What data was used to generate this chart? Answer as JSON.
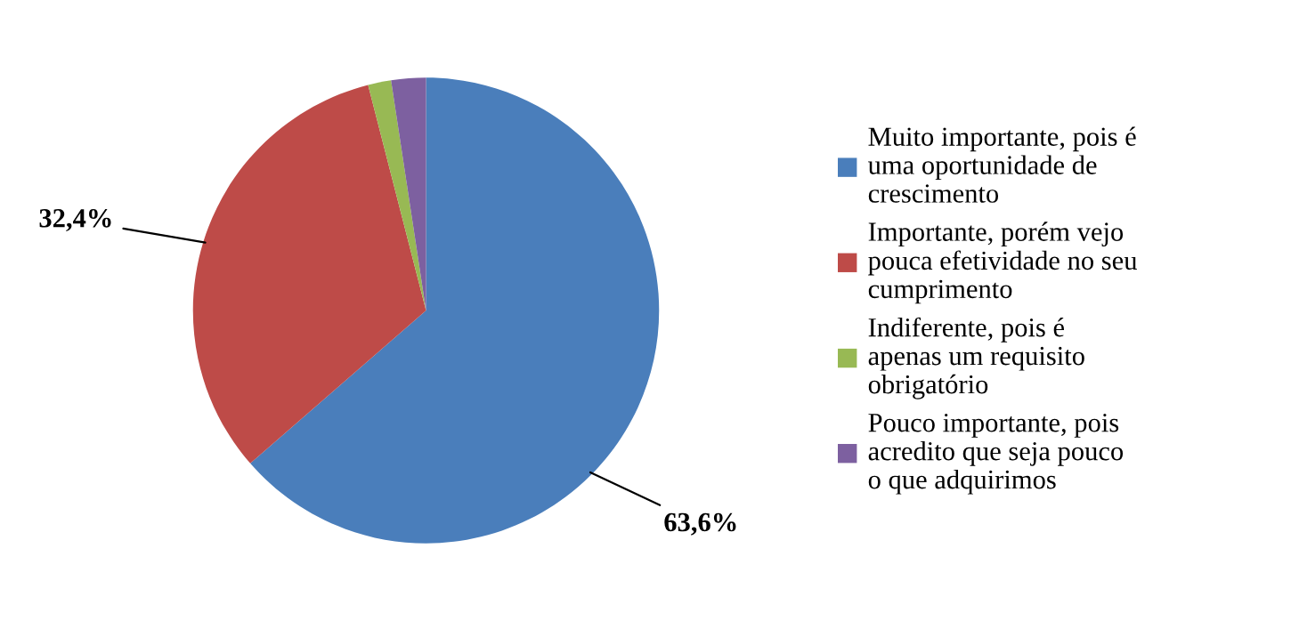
{
  "chart_data": {
    "type": "pie",
    "categories": [
      "Muito importante, pois é uma oportunidade de crescimento",
      "Importante, porém vejo pouca efetividade no seu cumprimento",
      "Indiferente, pois é apenas um requisito obrigatório",
      "Pouco importante, pois acredito que seja pouco o que adquirimos"
    ],
    "values": [
      63.6,
      32.4,
      1.6,
      2.4
    ],
    "value_labels": [
      "63,6%",
      "32,4%",
      null,
      null
    ],
    "colors": [
      "#4a7ebb",
      "#be4b48",
      "#98b954",
      "#7d60a0"
    ],
    "legend": "right"
  }
}
